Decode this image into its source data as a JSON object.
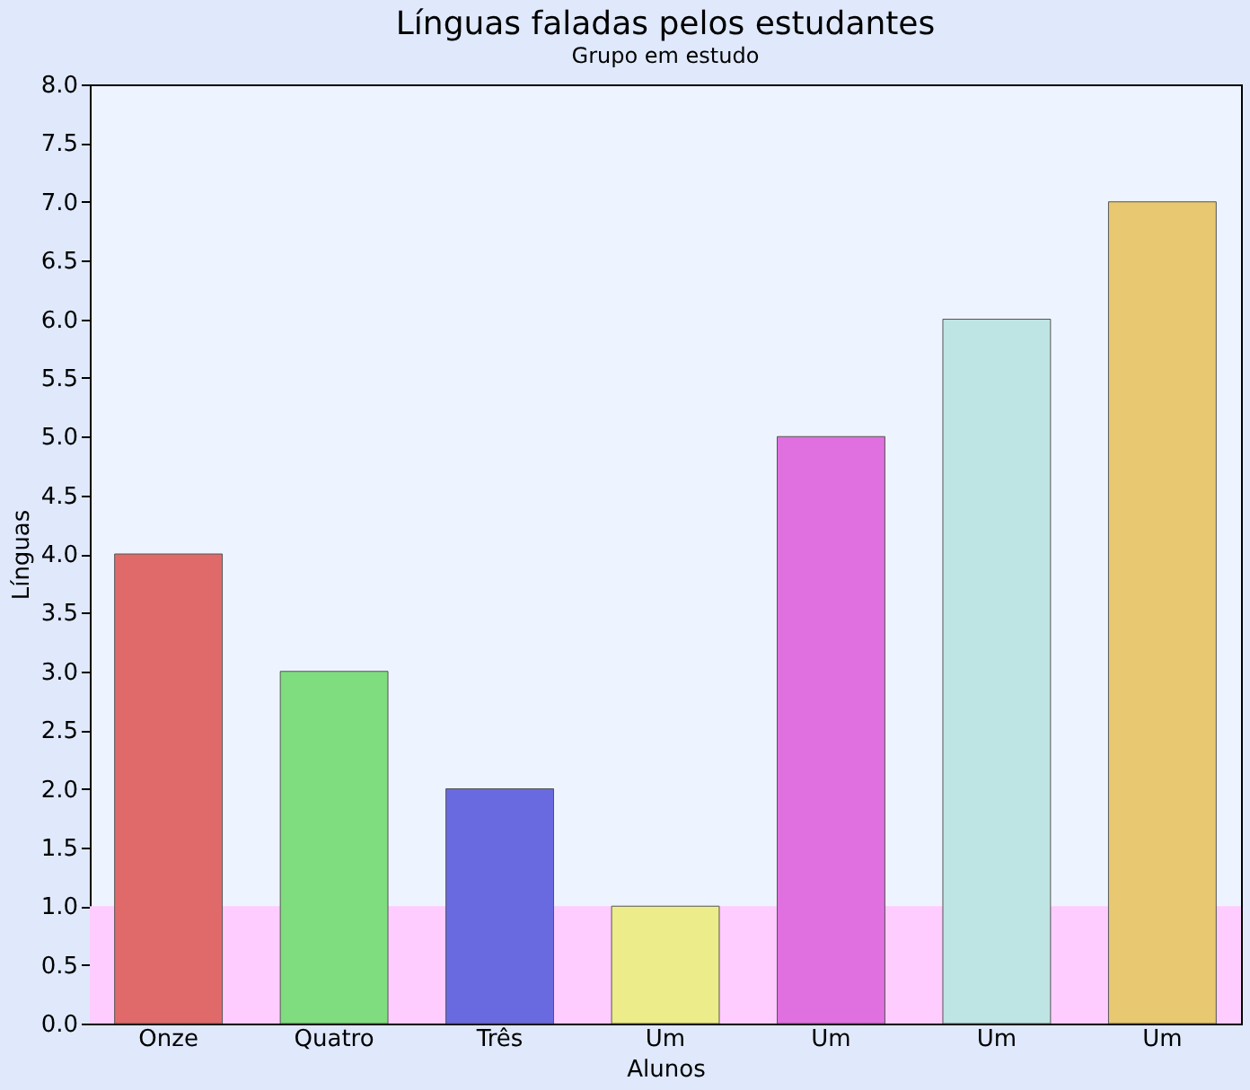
{
  "chart_data": {
    "type": "bar",
    "title": "Línguas faladas pelos estudantes",
    "subtitle": "Grupo em estudo",
    "xlabel": "Alunos",
    "ylabel": "Línguas",
    "categories": [
      "Onze",
      "Quatro",
      "Três",
      "Um",
      "Um",
      "Um",
      "Um"
    ],
    "values": [
      4,
      3,
      2,
      1,
      5,
      6,
      7
    ],
    "colors": [
      "#e06a6a",
      "#7fdc7f",
      "#6a6ae0",
      "#ecec8a",
      "#e070e0",
      "#bfe4e4",
      "#e8c870"
    ],
    "ylim": [
      0,
      8
    ],
    "yticks": [
      {
        "value": 0,
        "label": "0.0"
      },
      {
        "value": 0.5,
        "label": "0.5"
      },
      {
        "value": 1,
        "label": "1.0"
      },
      {
        "value": 1.5,
        "label": "1.5"
      },
      {
        "value": 2,
        "label": "2.0"
      },
      {
        "value": 2.5,
        "label": "2.5"
      },
      {
        "value": 3,
        "label": "3.0"
      },
      {
        "value": 3.5,
        "label": "3.5"
      },
      {
        "value": 4,
        "label": "4.0"
      },
      {
        "value": 4.5,
        "label": "4.5"
      },
      {
        "value": 5,
        "label": "5.0"
      },
      {
        "value": 5.5,
        "label": "5.5"
      },
      {
        "value": 6,
        "label": "6.0"
      },
      {
        "value": 6.5,
        "label": "6.5"
      },
      {
        "value": 7,
        "label": "7.0"
      },
      {
        "value": 7.5,
        "label": "7.5"
      },
      {
        "value": 8,
        "label": "8.0"
      }
    ],
    "bands": [
      {
        "axis": "y",
        "from": 0,
        "to": 1,
        "color": "#ffccff"
      }
    ],
    "grid": false
  }
}
